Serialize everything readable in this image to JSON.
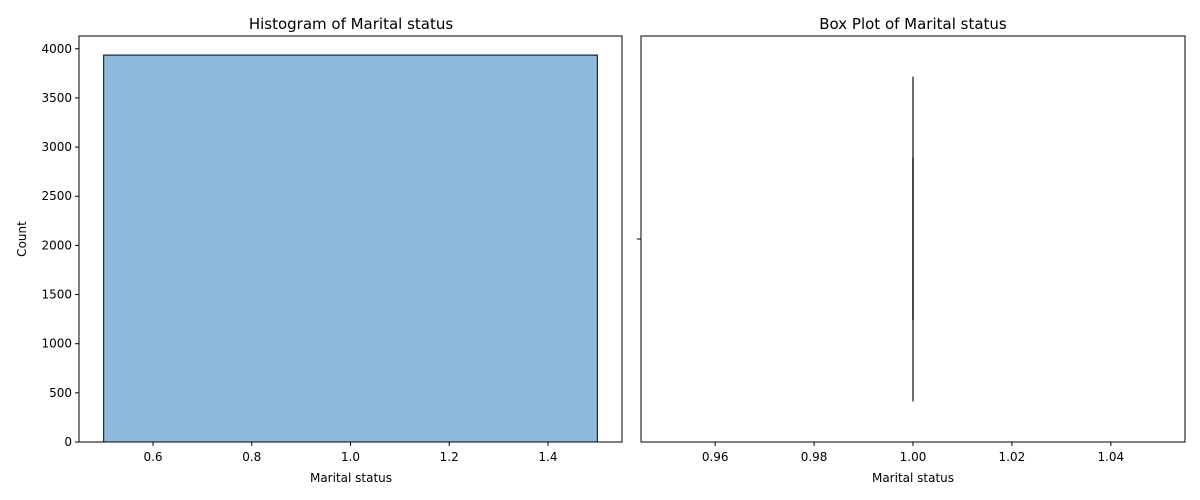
{
  "chart_data": [
    {
      "type": "bar",
      "subtype": "histogram",
      "title": "Histogram of Marital status",
      "xlabel": "Marital status",
      "ylabel": "Count",
      "xlim": [
        0.45,
        1.55
      ],
      "ylim": [
        0,
        4130
      ],
      "xticks": [
        0.6,
        0.8,
        1.0,
        1.2,
        1.4
      ],
      "xtick_labels": [
        "0.6",
        "0.8",
        "1.0",
        "1.2",
        "1.4"
      ],
      "yticks": [
        0,
        500,
        1000,
        1500,
        2000,
        2500,
        3000,
        3500,
        4000
      ],
      "ytick_labels": [
        "0",
        "500",
        "1000",
        "1500",
        "2000",
        "2500",
        "3000",
        "3500",
        "4000"
      ],
      "bins": [
        {
          "x0": 0.5,
          "x1": 1.5,
          "count": 3936
        }
      ],
      "bar_color": "#8fb9da",
      "edge_color": "#000000",
      "grid": false
    },
    {
      "type": "box",
      "title": "Box Plot of Marital status",
      "xlabel": "Marital status",
      "ylabel": "",
      "xlim": [
        0.945,
        1.055
      ],
      "xticks": [
        0.96,
        0.98,
        1.0,
        1.02,
        1.04
      ],
      "xtick_labels": [
        "0.96",
        "0.98",
        "1.00",
        "1.02",
        "1.04"
      ],
      "stats": {
        "min": 1.0,
        "q1": 1.0,
        "median": 1.0,
        "q3": 1.0,
        "max": 1.0
      },
      "box_color": "#3f3f3f",
      "grid": false
    }
  ]
}
